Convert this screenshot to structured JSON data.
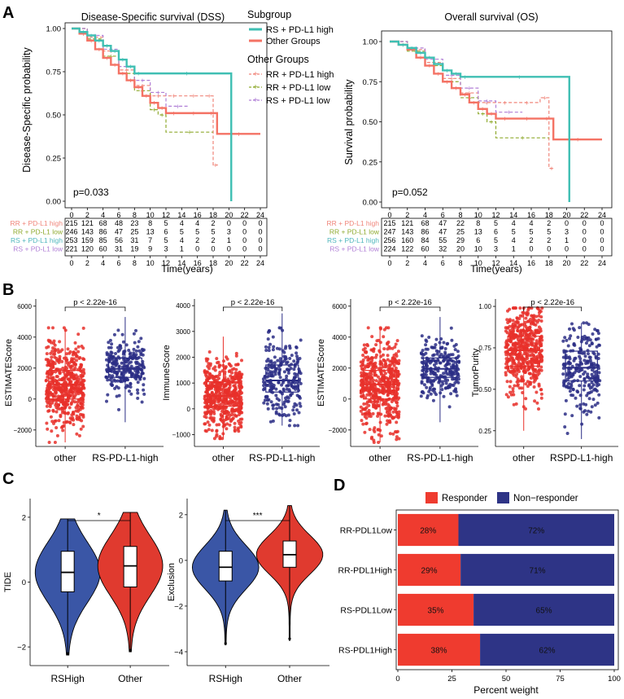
{
  "panel_letters": [
    "A",
    "B",
    "C",
    "D"
  ],
  "colors": {
    "green_solid": "#3fbfb3",
    "coral": "#f47264",
    "rr_high": "#f0857a",
    "rr_low": "#8faa2f",
    "rs_high": "#4fb6bd",
    "rs_low": "#b07fd6",
    "red_box": "#e8302a",
    "blue_box": "#2a2d85",
    "violin_blue": "#3a56a6",
    "violin_red": "#e03a2f",
    "bar_red": "#ef3b2f",
    "bar_blue": "#2e3486"
  },
  "chart_data": [
    {
      "type": "line",
      "panel": "A",
      "title": "Disease-Specific survival (DSS)",
      "ylabel": "Disease-Specific probability",
      "xlabel": "Time(years)",
      "xlim": [
        0,
        24
      ],
      "ylim": [
        0,
        1
      ],
      "xticks": [
        "0",
        "2",
        "4",
        "6",
        "8",
        "10",
        "12",
        "14",
        "16",
        "18",
        "20",
        "22",
        "24"
      ],
      "yticks": [
        "0.00",
        "0.25",
        "0.50",
        "0.75",
        "1.00"
      ],
      "pvalue": "p=0.033",
      "series": [
        {
          "name": "RS + PD-L1 high",
          "style": "solid",
          "x": [
            0,
            1,
            2,
            3,
            4,
            5,
            6,
            7,
            8,
            9,
            20.3,
            20.3
          ],
          "y": [
            1.0,
            0.98,
            0.96,
            0.93,
            0.9,
            0.87,
            0.82,
            0.78,
            0.74,
            0.74,
            0.74,
            0.0
          ]
        },
        {
          "name": "Other Groups",
          "style": "solid",
          "x": [
            0,
            1,
            2,
            3,
            4,
            5,
            6,
            7,
            8,
            9,
            10,
            11,
            12,
            14,
            17,
            18.5,
            24
          ],
          "y": [
            1.0,
            0.97,
            0.93,
            0.88,
            0.83,
            0.79,
            0.74,
            0.7,
            0.66,
            0.61,
            0.57,
            0.54,
            0.51,
            0.51,
            0.51,
            0.39,
            0.39
          ]
        },
        {
          "name": "RR + PD-L1 high",
          "style": "dashed",
          "x": [
            0,
            2,
            4,
            6,
            8,
            10,
            12,
            14,
            17,
            18,
            18.6
          ],
          "y": [
            1.0,
            0.95,
            0.87,
            0.76,
            0.67,
            0.61,
            0.61,
            0.61,
            0.61,
            0.21,
            0.21
          ]
        },
        {
          "name": "RR + PD-L1 low",
          "style": "dashed",
          "x": [
            0,
            2,
            4,
            6,
            8,
            10,
            11,
            12,
            18
          ],
          "y": [
            1.0,
            0.94,
            0.84,
            0.74,
            0.64,
            0.53,
            0.5,
            0.4,
            0.4
          ]
        },
        {
          "name": "RS + PD-L1 low",
          "style": "dashed",
          "x": [
            0,
            2,
            4,
            6,
            8,
            10,
            12,
            15
          ],
          "y": [
            1.0,
            0.96,
            0.88,
            0.78,
            0.7,
            0.63,
            0.55,
            0.55
          ]
        }
      ],
      "risk_table": {
        "rows": [
          {
            "label": "RR + PD-L1  high",
            "values": [
              "215",
              "121",
              "68",
              "48",
              "23",
              "8",
              "5",
              "4",
              "4",
              "2",
              "0",
              "0",
              "0"
            ]
          },
          {
            "label": "RR + PD-L1  low",
            "values": [
              "246",
              "143",
              "86",
              "47",
              "25",
              "13",
              "6",
              "5",
              "5",
              "5",
              "3",
              "0",
              "0"
            ]
          },
          {
            "label": "RS + PD-L1  high",
            "values": [
              "253",
              "159",
              "85",
              "56",
              "31",
              "7",
              "5",
              "4",
              "2",
              "2",
              "1",
              "0",
              "0"
            ]
          },
          {
            "label": "RS + PD-L1  low",
            "values": [
              "221",
              "120",
              "60",
              "31",
              "19",
              "9",
              "3",
              "1",
              "0",
              "0",
              "0",
              "0",
              "0"
            ]
          }
        ]
      }
    },
    {
      "type": "line",
      "panel": "A",
      "title": "Overall survival (OS)",
      "ylabel": "Survival probability",
      "xlabel": "Time(years)",
      "xlim": [
        0,
        24
      ],
      "ylim": [
        0,
        1
      ],
      "xticks": [
        "0",
        "2",
        "4",
        "6",
        "8",
        "10",
        "12",
        "14",
        "16",
        "18",
        "20",
        "22",
        "24"
      ],
      "yticks": [
        "0.00",
        "0.25",
        "0.50",
        "0.75",
        "1.00"
      ],
      "pvalue": "p=0.052",
      "series": [
        {
          "name": "RS + PD-L1 high",
          "style": "solid",
          "x": [
            0,
            1,
            2,
            3,
            4,
            5,
            6,
            7,
            8,
            9,
            20.3,
            20.3
          ],
          "y": [
            1.0,
            0.98,
            0.96,
            0.93,
            0.9,
            0.86,
            0.82,
            0.8,
            0.78,
            0.78,
            0.78,
            0.0
          ]
        },
        {
          "name": "Other Groups",
          "style": "solid",
          "x": [
            0,
            1,
            2,
            3,
            4,
            5,
            6,
            7,
            8,
            9,
            10,
            11,
            12,
            14,
            17,
            18.5,
            24
          ],
          "y": [
            1.0,
            0.98,
            0.95,
            0.9,
            0.85,
            0.8,
            0.75,
            0.71,
            0.67,
            0.62,
            0.58,
            0.55,
            0.52,
            0.52,
            0.52,
            0.39,
            0.39
          ]
        },
        {
          "name": "RR + PD-L1 high",
          "style": "dashed",
          "x": [
            0,
            2,
            4,
            6,
            8,
            10,
            12,
            14,
            17,
            18,
            18.6
          ],
          "y": [
            1.0,
            0.95,
            0.87,
            0.77,
            0.68,
            0.62,
            0.62,
            0.62,
            0.65,
            0.21,
            0.21
          ]
        },
        {
          "name": "RR + PD-L1 low",
          "style": "dashed",
          "x": [
            0,
            2,
            4,
            6,
            8,
            10,
            11,
            12,
            18
          ],
          "y": [
            1.0,
            0.94,
            0.85,
            0.75,
            0.65,
            0.55,
            0.5,
            0.4,
            0.4
          ]
        },
        {
          "name": "RS + PD-L1 low",
          "style": "dashed",
          "x": [
            0,
            2,
            4,
            6,
            8,
            10,
            12,
            15
          ],
          "y": [
            1.0,
            0.96,
            0.89,
            0.79,
            0.71,
            0.63,
            0.56,
            0.56
          ]
        }
      ],
      "risk_table": {
        "rows": [
          {
            "label": "RR + PD-L1  high",
            "values": [
              "215",
              "121",
              "68",
              "47",
              "22",
              "8",
              "5",
              "4",
              "4",
              "2",
              "0",
              "0",
              "0"
            ]
          },
          {
            "label": "RR + PD-L1  low",
            "values": [
              "247",
              "143",
              "86",
              "47",
              "25",
              "13",
              "6",
              "5",
              "5",
              "5",
              "3",
              "0",
              "0"
            ]
          },
          {
            "label": "RS + PD-L1  high",
            "values": [
              "256",
              "160",
              "84",
              "55",
              "29",
              "6",
              "5",
              "4",
              "2",
              "2",
              "1",
              "0",
              "0"
            ]
          },
          {
            "label": "RS + PD-L1  low",
            "values": [
              "224",
              "122",
              "60",
              "32",
              "20",
              "10",
              "3",
              "1",
              "0",
              "0",
              "0",
              "0",
              "0"
            ]
          }
        ]
      }
    },
    {
      "type": "box",
      "panel": "B",
      "ylabel": "ESTIMATEScore",
      "categories": [
        "other",
        "RS-PD-L1-high"
      ],
      "ylim": [
        -2800,
        6200
      ],
      "yticks": [
        -2000,
        0,
        2000,
        4000,
        6000
      ],
      "pvalue": "p < 2.22e-16",
      "boxes": [
        {
          "q1": 0,
          "median": 950,
          "q3": 1850,
          "lo": -2800,
          "hi": 4600
        },
        {
          "q1": 1400,
          "median": 1950,
          "q3": 2650,
          "lo": -1500,
          "hi": 5300
        }
      ]
    },
    {
      "type": "box",
      "panel": "B",
      "ylabel": "ImmuneScore",
      "categories": [
        "other",
        "RS-PD-L1-high"
      ],
      "ylim": [
        -1300,
        4100
      ],
      "yticks": [
        -1000,
        0,
        1000,
        2000,
        3000,
        4000
      ],
      "pvalue": "p < 2.22e-16",
      "boxes": [
        {
          "q1": 100,
          "median": 500,
          "q3": 1050,
          "lo": -1150,
          "hi": 2800
        },
        {
          "q1": 650,
          "median": 1100,
          "q3": 1700,
          "lo": -650,
          "hi": 3700
        }
      ]
    },
    {
      "type": "box",
      "panel": "B",
      "ylabel": "ESTIMATEScore",
      "categories": [
        "other",
        "RS-PD-L1-high"
      ],
      "ylim": [
        -2800,
        6200
      ],
      "yticks": [
        -2000,
        0,
        2000,
        4000,
        6000
      ],
      "pvalue": "p < 2.22e-16",
      "boxes": [
        {
          "q1": 0,
          "median": 950,
          "q3": 1850,
          "lo": -2800,
          "hi": 4600
        },
        {
          "q1": 1400,
          "median": 1950,
          "q3": 2650,
          "lo": -1500,
          "hi": 5300
        }
      ]
    },
    {
      "type": "box",
      "panel": "B",
      "ylabel": "TumorPurity",
      "categories": [
        "other",
        "RSPD-L1-high"
      ],
      "ylim": [
        0.18,
        1.02
      ],
      "yticks": [
        0.25,
        0.5,
        0.75,
        1.0
      ],
      "ytick_labels": [
        "0.25",
        "0.50",
        "0.75",
        "1.00"
      ],
      "pvalue": "p < 2.22e-16",
      "boxes": [
        {
          "q1": 0.64,
          "median": 0.735,
          "q3": 0.82,
          "lo": 0.25,
          "hi": 0.99
        },
        {
          "q1": 0.55,
          "median": 0.63,
          "q3": 0.73,
          "lo": 0.2,
          "hi": 0.9
        }
      ]
    },
    {
      "type": "violin",
      "panel": "C",
      "ylabel": "TIDE",
      "categories": [
        "RSHigh",
        "Other"
      ],
      "ylim": [
        -2.5,
        2.5
      ],
      "yticks": [
        -2,
        0,
        2
      ],
      "signif": "*",
      "boxes": [
        {
          "q1": -0.3,
          "median": 0.3,
          "q3": 0.95,
          "lo": -2.25,
          "hi": 1.95
        },
        {
          "q1": -0.15,
          "median": 0.5,
          "q3": 1.1,
          "lo": -2.15,
          "hi": 2.15
        }
      ]
    },
    {
      "type": "violin",
      "panel": "C",
      "ylabel": "Exclusion",
      "categories": [
        "RSHigh",
        "Other"
      ],
      "ylim": [
        -4.5,
        2.6
      ],
      "yticks": [
        -4,
        -2,
        0,
        2
      ],
      "signif": "***",
      "boxes": [
        {
          "q1": -0.9,
          "median": -0.3,
          "q3": 0.4,
          "lo": -3.7,
          "hi": 2.2
        },
        {
          "q1": -0.3,
          "median": 0.25,
          "q3": 0.85,
          "lo": -3.5,
          "hi": 2.4
        }
      ]
    },
    {
      "type": "bar",
      "panel": "D",
      "orientation": "horizontal",
      "stacked": true,
      "categories": [
        "RR-PDL1Low",
        "RR-PDL1High",
        "RS-PDL1Low",
        "RS-PDL1High"
      ],
      "series": [
        {
          "name": "Responder",
          "values": [
            28,
            29,
            35,
            38
          ],
          "labels": [
            "28%",
            "29%",
            "35%",
            "38%"
          ]
        },
        {
          "name": "Non−responder",
          "values": [
            72,
            71,
            65,
            62
          ],
          "labels": [
            "72%",
            "71%",
            "65%",
            "62%"
          ]
        }
      ],
      "xlabel": "Percent weight",
      "xlim": [
        0,
        100
      ],
      "xticks": [
        "0",
        "25",
        "50",
        "75",
        "100"
      ],
      "legend_position": "top"
    }
  ],
  "legend_a": {
    "title_sub": "Subgroup",
    "sub_items": [
      "RS + PD-L1 high",
      "Other Groups"
    ],
    "title_other": "Other Groups",
    "other_items": [
      "RR + PD-L1 high",
      "RR + PD-L1 low",
      "RS + PD-L1 low"
    ]
  }
}
